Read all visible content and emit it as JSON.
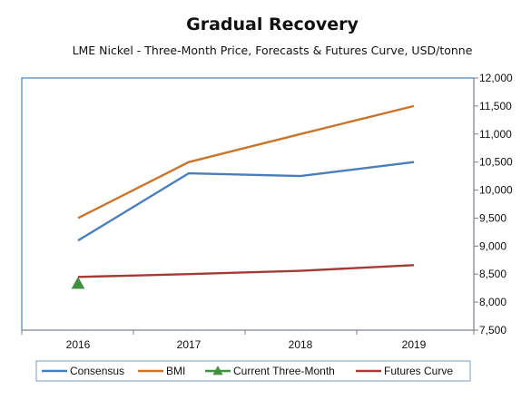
{
  "chart_data": {
    "type": "line",
    "title": "Gradual Recovery",
    "subtitle": "LME Nickel - Three-Month Price, Forecasts & Futures Curve, USD/tonne",
    "xlabel": "",
    "ylabel": "",
    "categories": [
      "2016",
      "2017",
      "2018",
      "2019"
    ],
    "ylim": [
      7500,
      12000
    ],
    "ytick_step": 500,
    "y_axis_position": "right",
    "grid": false,
    "legend_position": "bottom",
    "series": [
      {
        "name": "Consensus",
        "color": "#4a7ebb",
        "marker": "none",
        "values": [
          9100,
          10300,
          10250,
          10500
        ]
      },
      {
        "name": "BMI",
        "color": "#c8742b",
        "marker": "none",
        "values": [
          9500,
          10500,
          11000,
          11500
        ]
      },
      {
        "name": "Current Three-Month",
        "color": "#3f8f3f",
        "marker": "triangle",
        "values": [
          8330,
          null,
          null,
          null
        ]
      },
      {
        "name": "Futures Curve",
        "color": "#a23b33",
        "marker": "none",
        "values": [
          8450,
          8500,
          8560,
          8660
        ]
      }
    ]
  },
  "colors": {
    "frame": "#4a7ebb",
    "axis": "#7f7f7f",
    "legend_border": "#7a9cc6"
  }
}
